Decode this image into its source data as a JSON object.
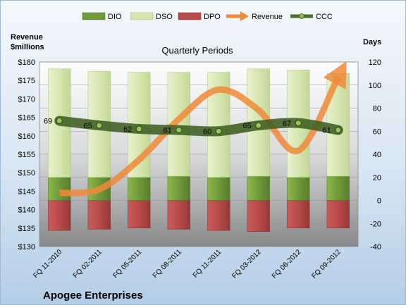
{
  "chart_data": {
    "type": "bar",
    "title": "Quarterly Periods",
    "company": "Apogee Enterprises",
    "left_axis": {
      "label_line1": "Revenue",
      "label_line2": "$millions",
      "ticks": [
        "$130",
        "$135",
        "$140",
        "$145",
        "$150",
        "$155",
        "$160",
        "$165",
        "$170",
        "$175",
        "$180"
      ],
      "range": [
        130,
        180
      ]
    },
    "right_axis": {
      "label": "Days",
      "ticks": [
        "-40",
        "-20",
        "0",
        "20",
        "40",
        "60",
        "80",
        "100",
        "120"
      ],
      "range": [
        -40,
        120
      ]
    },
    "categories": [
      "FQ 11-2010",
      "FQ 02-2011",
      "FQ 05-2011",
      "FQ 08-2011",
      "FQ 11-2011",
      "FQ 03-2012",
      "FQ 06-2012",
      "FQ 09-2012"
    ],
    "legend": [
      "DIO",
      "DSO",
      "DPO",
      "Revenue",
      "CCC"
    ],
    "series": [
      {
        "name": "DIO",
        "axis": "days",
        "values": [
          20,
          20,
          20,
          21,
          20,
          21,
          20,
          21
        ],
        "color": "#6f9a3a"
      },
      {
        "name": "DSO",
        "axis": "days",
        "values": [
          94,
          92,
          91,
          90,
          91,
          93,
          93,
          89
        ],
        "color": "#d6e6b0"
      },
      {
        "name": "DPO",
        "axis": "days",
        "values": [
          -26,
          -25,
          -24,
          -25,
          -26,
          -27,
          -24,
          -24
        ],
        "color": "#b84a4a"
      },
      {
        "name": "Revenue",
        "axis": "revenue",
        "values": [
          144.5,
          145.5,
          153.5,
          164.5,
          172.5,
          167.0,
          156.0,
          176.0
        ],
        "color": "#ef8a3a"
      },
      {
        "name": "CCC",
        "axis": "days",
        "values": [
          69,
          65,
          62,
          61,
          60,
          65,
          67,
          61
        ],
        "color": "#4d6e2a"
      }
    ],
    "ccc_labels": [
      "69",
      "65",
      "62",
      "61",
      "60",
      "65",
      "67",
      "61"
    ],
    "grid": true
  }
}
